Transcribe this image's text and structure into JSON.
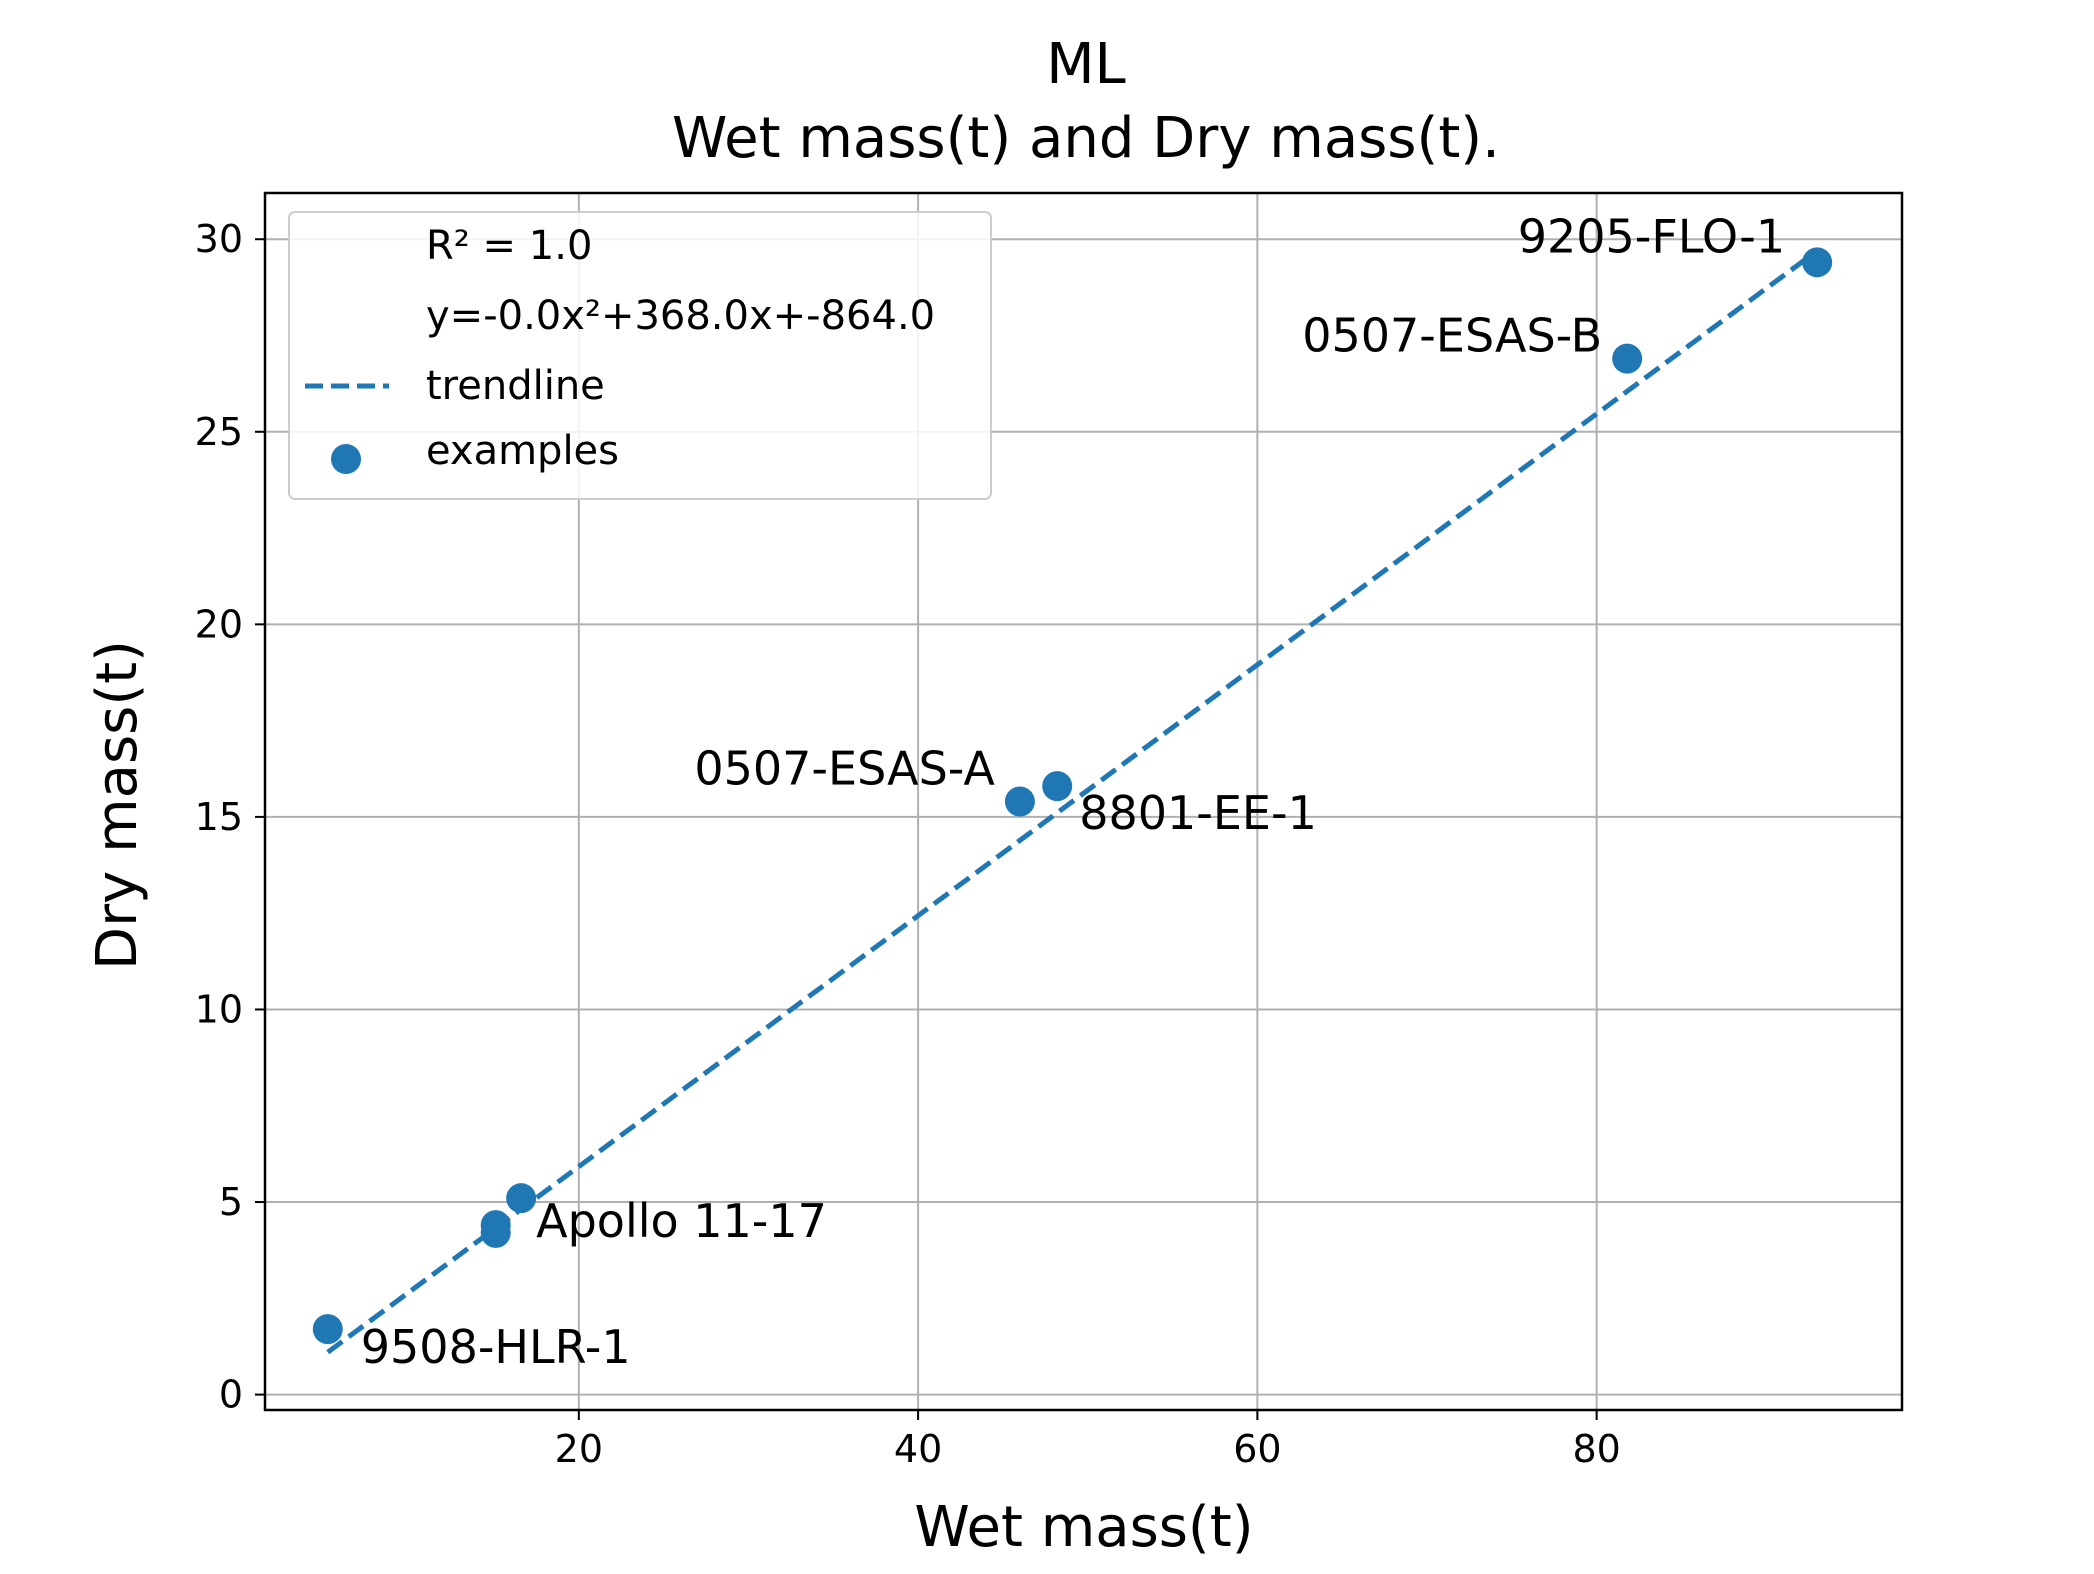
{
  "chart_data": {
    "type": "scatter",
    "title": "ML",
    "subtitle": "Wet mass(t) and Dry mass(t).",
    "xlabel": "Wet mass(t)",
    "ylabel": "Dry mass(t)",
    "xlim": [
      1.5,
      98
    ],
    "ylim": [
      -0.4,
      31.2
    ],
    "xticks": [
      20,
      40,
      60,
      80
    ],
    "yticks": [
      0,
      5,
      10,
      15,
      20,
      25,
      30
    ],
    "grid": true,
    "legend": {
      "placement": "top-left",
      "entries": [
        {
          "label": "R² = 1.0",
          "marker": "none"
        },
        {
          "label": "y=-0.0x²+368.0x+-864.0",
          "marker": "none"
        },
        {
          "label": "trendline",
          "marker": "dashed-line"
        },
        {
          "label": "examples",
          "marker": "dot"
        }
      ]
    },
    "series": [
      {
        "name": "examples",
        "kind": "scatter",
        "color": "#1f77b4",
        "points": [
          {
            "x": 5.2,
            "y": 1.7,
            "label": "9508-HLR-1"
          },
          {
            "x": 15.1,
            "y": 4.2,
            "label": ""
          },
          {
            "x": 15.1,
            "y": 4.4,
            "label": ""
          },
          {
            "x": 16.6,
            "y": 5.1,
            "label": "Apollo 11-17"
          },
          {
            "x": 46.0,
            "y": 15.4,
            "label": "0507-ESAS-A"
          },
          {
            "x": 48.2,
            "y": 15.8,
            "label": "8801-EE-1"
          },
          {
            "x": 81.8,
            "y": 26.9,
            "label": "0507-ESAS-B"
          },
          {
            "x": 93.0,
            "y": 29.4,
            "label": "9205-FLO-1"
          }
        ]
      },
      {
        "name": "trendline",
        "kind": "line",
        "style": "dashed",
        "color": "#1f77b4",
        "x": [
          5.2,
          93.0
        ],
        "y": [
          1.1,
          29.7
        ]
      }
    ]
  }
}
